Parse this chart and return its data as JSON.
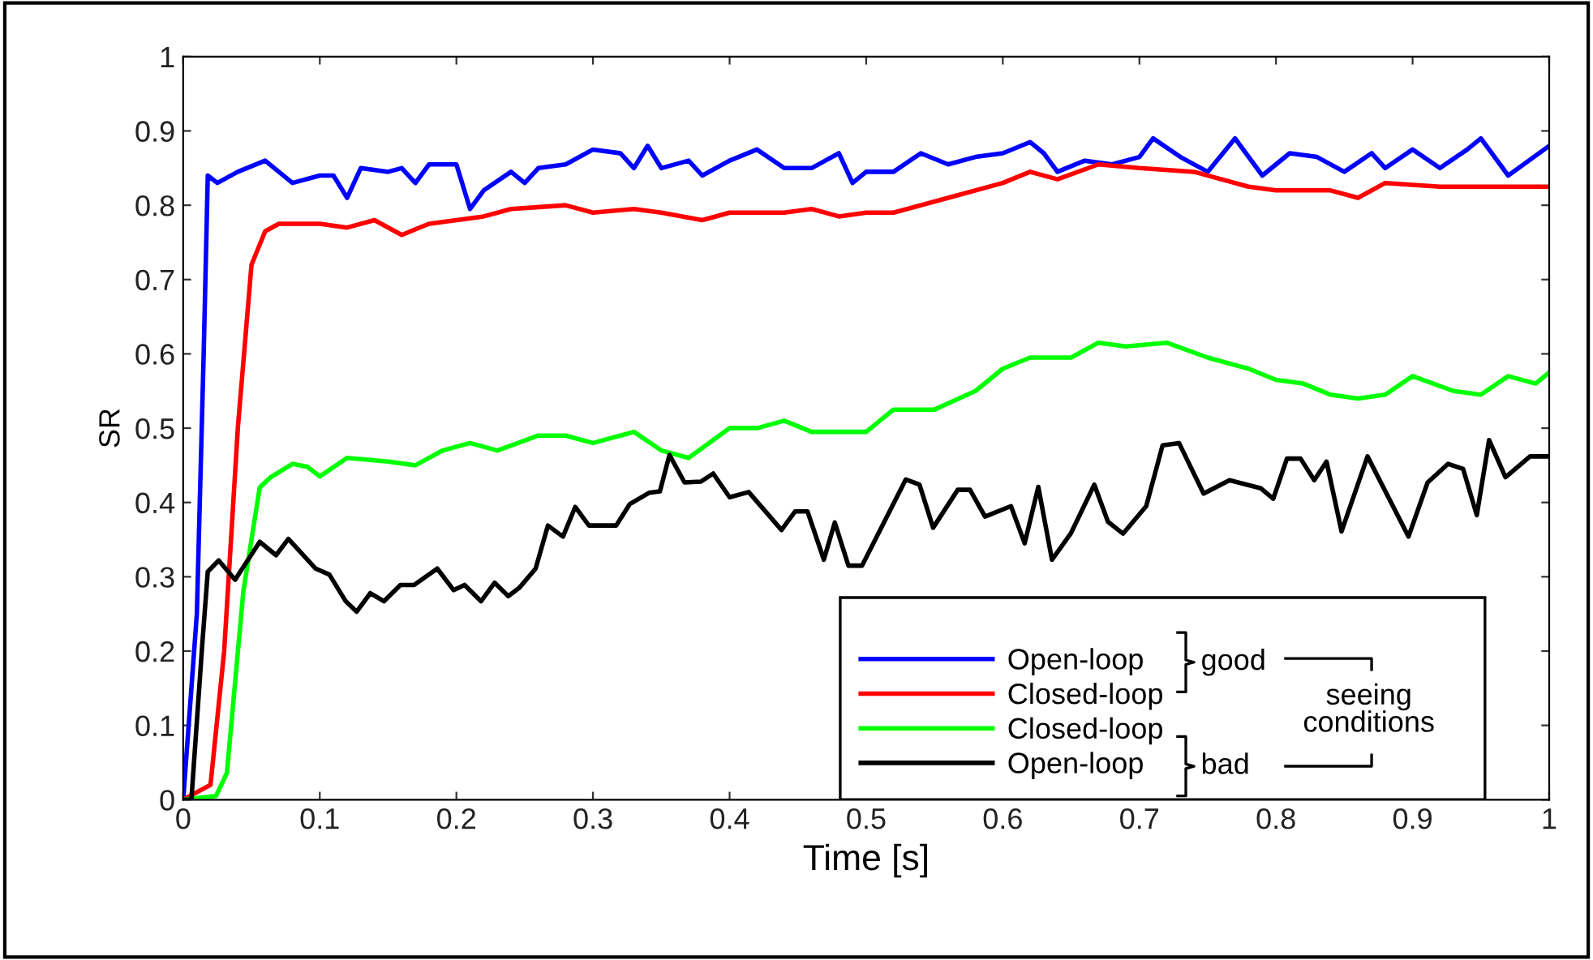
{
  "chart_data": {
    "type": "line",
    "xlabel": "Time [s]",
    "ylabel": "SR",
    "xlim": [
      0,
      1
    ],
    "ylim": [
      0,
      1
    ],
    "xticks": [
      0,
      0.1,
      0.2,
      0.3,
      0.4,
      0.5,
      0.6,
      0.7,
      0.8,
      0.9,
      1
    ],
    "yticks": [
      0,
      0.1,
      0.2,
      0.3,
      0.4,
      0.5,
      0.6,
      0.7,
      0.8,
      0.9,
      1
    ],
    "grid": false,
    "legend": "bottom right",
    "marker": "none",
    "line_style": "solid",
    "annotations": [
      "good",
      "bad",
      "seeing\nconditions"
    ],
    "series": [
      {
        "name": "Open-loop",
        "color": "#0000ff",
        "x": [
          0,
          0.01,
          0.015,
          0.018,
          0.025,
          0.04,
          0.06,
          0.08,
          0.1,
          0.11,
          0.12,
          0.13,
          0.15,
          0.16,
          0.17,
          0.18,
          0.2,
          0.21,
          0.22,
          0.24,
          0.25,
          0.26,
          0.28,
          0.3,
          0.32,
          0.33,
          0.34,
          0.35,
          0.37,
          0.38,
          0.4,
          0.42,
          0.44,
          0.46,
          0.48,
          0.49,
          0.5,
          0.52,
          0.54,
          0.56,
          0.58,
          0.6,
          0.62,
          0.63,
          0.64,
          0.66,
          0.68,
          0.7,
          0.71,
          0.73,
          0.75,
          0.77,
          0.79,
          0.81,
          0.83,
          0.85,
          0.87,
          0.88,
          0.9,
          0.92,
          0.94,
          0.95,
          0.97,
          1.0
        ],
        "values": [
          0,
          0.25,
          0.6,
          0.84,
          0.83,
          0.845,
          0.86,
          0.83,
          0.84,
          0.84,
          0.81,
          0.85,
          0.845,
          0.85,
          0.83,
          0.855,
          0.855,
          0.795,
          0.82,
          0.845,
          0.83,
          0.85,
          0.855,
          0.875,
          0.87,
          0.85,
          0.88,
          0.85,
          0.86,
          0.84,
          0.86,
          0.875,
          0.85,
          0.85,
          0.87,
          0.83,
          0.845,
          0.845,
          0.87,
          0.855,
          0.865,
          0.87,
          0.885,
          0.87,
          0.845,
          0.86,
          0.855,
          0.865,
          0.89,
          0.865,
          0.845,
          0.89,
          0.84,
          0.87,
          0.865,
          0.845,
          0.87,
          0.85,
          0.875,
          0.85,
          0.875,
          0.89,
          0.84,
          0.88
        ]
      },
      {
        "name": "Closed-loop",
        "color": "#ff0000",
        "x": [
          0,
          0.02,
          0.03,
          0.04,
          0.05,
          0.06,
          0.07,
          0.1,
          0.12,
          0.14,
          0.16,
          0.18,
          0.2,
          0.22,
          0.24,
          0.28,
          0.3,
          0.33,
          0.35,
          0.38,
          0.4,
          0.44,
          0.46,
          0.48,
          0.5,
          0.52,
          0.56,
          0.6,
          0.62,
          0.64,
          0.67,
          0.7,
          0.74,
          0.78,
          0.8,
          0.84,
          0.86,
          0.88,
          0.92,
          1.0
        ],
        "values": [
          0,
          0.02,
          0.2,
          0.5,
          0.72,
          0.765,
          0.775,
          0.775,
          0.77,
          0.78,
          0.76,
          0.775,
          0.78,
          0.785,
          0.795,
          0.8,
          0.79,
          0.795,
          0.79,
          0.78,
          0.79,
          0.79,
          0.795,
          0.785,
          0.79,
          0.79,
          0.81,
          0.83,
          0.845,
          0.835,
          0.855,
          0.85,
          0.845,
          0.825,
          0.82,
          0.82,
          0.81,
          0.83,
          0.825,
          0.825
        ]
      },
      {
        "name": "Closed-loop",
        "color": "#00ff00",
        "x": [
          0,
          0.024,
          0.032,
          0.044,
          0.056,
          0.064,
          0.08,
          0.091,
          0.1,
          0.12,
          0.15,
          0.17,
          0.19,
          0.21,
          0.23,
          0.26,
          0.28,
          0.3,
          0.32,
          0.33,
          0.35,
          0.37,
          0.4,
          0.42,
          0.44,
          0.46,
          0.5,
          0.52,
          0.55,
          0.58,
          0.6,
          0.62,
          0.65,
          0.67,
          0.69,
          0.72,
          0.75,
          0.78,
          0.8,
          0.82,
          0.84,
          0.86,
          0.88,
          0.9,
          0.93,
          0.95,
          0.97,
          0.99,
          1.0
        ],
        "values": [
          0,
          0.005,
          0.036,
          0.28,
          0.42,
          0.434,
          0.452,
          0.448,
          0.435,
          0.46,
          0.455,
          0.45,
          0.47,
          0.48,
          0.47,
          0.49,
          0.49,
          0.48,
          0.49,
          0.495,
          0.47,
          0.46,
          0.5,
          0.5,
          0.51,
          0.495,
          0.495,
          0.525,
          0.525,
          0.55,
          0.58,
          0.595,
          0.595,
          0.615,
          0.61,
          0.615,
          0.595,
          0.58,
          0.565,
          0.56,
          0.545,
          0.54,
          0.545,
          0.57,
          0.55,
          0.545,
          0.57,
          0.56,
          0.575
        ]
      },
      {
        "name": "Open-loop",
        "color": "#000000",
        "x": [
          0,
          0.006,
          0.014,
          0.018,
          0.026,
          0.038,
          0.056,
          0.068,
          0.077,
          0.097,
          0.107,
          0.119,
          0.127,
          0.137,
          0.147,
          0.159,
          0.169,
          0.186,
          0.198,
          0.206,
          0.218,
          0.228,
          0.238,
          0.246,
          0.258,
          0.267,
          0.278,
          0.287,
          0.297,
          0.317,
          0.327,
          0.341,
          0.349,
          0.356,
          0.367,
          0.379,
          0.388,
          0.4,
          0.414,
          0.438,
          0.448,
          0.457,
          0.469,
          0.477,
          0.487,
          0.497,
          0.529,
          0.539,
          0.549,
          0.567,
          0.576,
          0.587,
          0.606,
          0.616,
          0.626,
          0.636,
          0.65,
          0.667,
          0.677,
          0.688,
          0.705,
          0.717,
          0.729,
          0.747,
          0.766,
          0.789,
          0.798,
          0.808,
          0.818,
          0.828,
          0.837,
          0.848,
          0.867,
          0.897,
          0.911,
          0.926,
          0.937,
          0.947,
          0.956,
          0.968,
          0.986,
          1.0
        ],
        "values": [
          0,
          0,
          0.21,
          0.307,
          0.322,
          0.296,
          0.347,
          0.329,
          0.351,
          0.311,
          0.303,
          0.267,
          0.253,
          0.278,
          0.267,
          0.289,
          0.289,
          0.311,
          0.282,
          0.289,
          0.267,
          0.292,
          0.274,
          0.285,
          0.311,
          0.369,
          0.354,
          0.394,
          0.369,
          0.369,
          0.398,
          0.413,
          0.415,
          0.464,
          0.427,
          0.428,
          0.439,
          0.407,
          0.414,
          0.363,
          0.388,
          0.388,
          0.323,
          0.373,
          0.315,
          0.315,
          0.431,
          0.424,
          0.366,
          0.417,
          0.417,
          0.381,
          0.395,
          0.345,
          0.421,
          0.323,
          0.359,
          0.424,
          0.374,
          0.358,
          0.395,
          0.477,
          0.48,
          0.412,
          0.43,
          0.419,
          0.405,
          0.459,
          0.459,
          0.43,
          0.455,
          0.361,
          0.462,
          0.354,
          0.427,
          0.452,
          0.445,
          0.383,
          0.484,
          0.434,
          0.462,
          0.462
        ]
      }
    ]
  }
}
